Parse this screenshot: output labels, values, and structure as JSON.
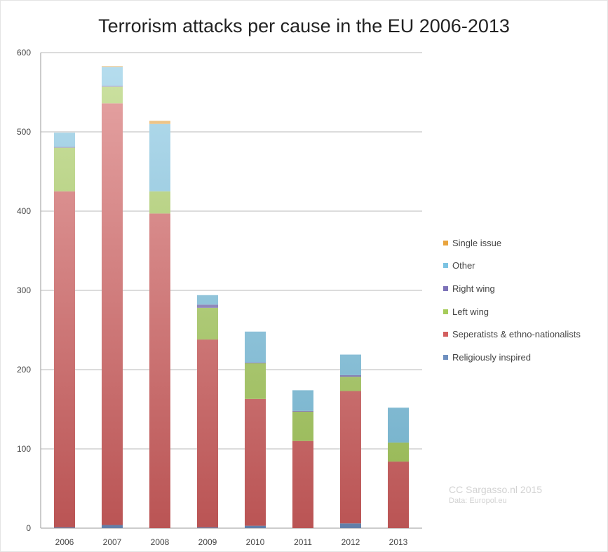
{
  "chart_data": {
    "type": "bar",
    "stacked": true,
    "title": "Terrorism attacks per cause in the EU 2006-2013",
    "xlabel": "",
    "ylabel": "",
    "categories": [
      "2006",
      "2007",
      "2008",
      "2009",
      "2010",
      "2011",
      "2012",
      "2013"
    ],
    "ylim": [
      0,
      600
    ],
    "yticks": [
      0,
      100,
      200,
      300,
      400,
      500,
      600
    ],
    "grid": true,
    "legend_position": "right",
    "series": [
      {
        "name": "Religiously inspired",
        "color": "#6f90c0",
        "values": [
          1,
          4,
          0,
          1,
          3,
          0,
          6,
          0
        ]
      },
      {
        "name": "Seperatists & ethno-nationalists",
        "color": "#d35f5f",
        "values": [
          424,
          532,
          397,
          237,
          160,
          110,
          167,
          84
        ]
      },
      {
        "name": "Left wing",
        "color": "#a6cc5a",
        "values": [
          55,
          21,
          28,
          40,
          45,
          37,
          18,
          24
        ]
      },
      {
        "name": "Right wing",
        "color": "#7d72b8",
        "values": [
          1,
          1,
          0,
          4,
          1,
          1,
          2,
          0
        ]
      },
      {
        "name": "Other",
        "color": "#7cc3e2",
        "values": [
          18,
          24,
          85,
          12,
          39,
          26,
          26,
          44
        ]
      },
      {
        "name": "Single issue",
        "color": "#e9a43e",
        "values": [
          0,
          1,
          4,
          0,
          0,
          0,
          0,
          0
        ]
      }
    ]
  },
  "credit": {
    "line1": "CC Sargasso.nl 2015",
    "line2": "Data: Europol.eu"
  }
}
